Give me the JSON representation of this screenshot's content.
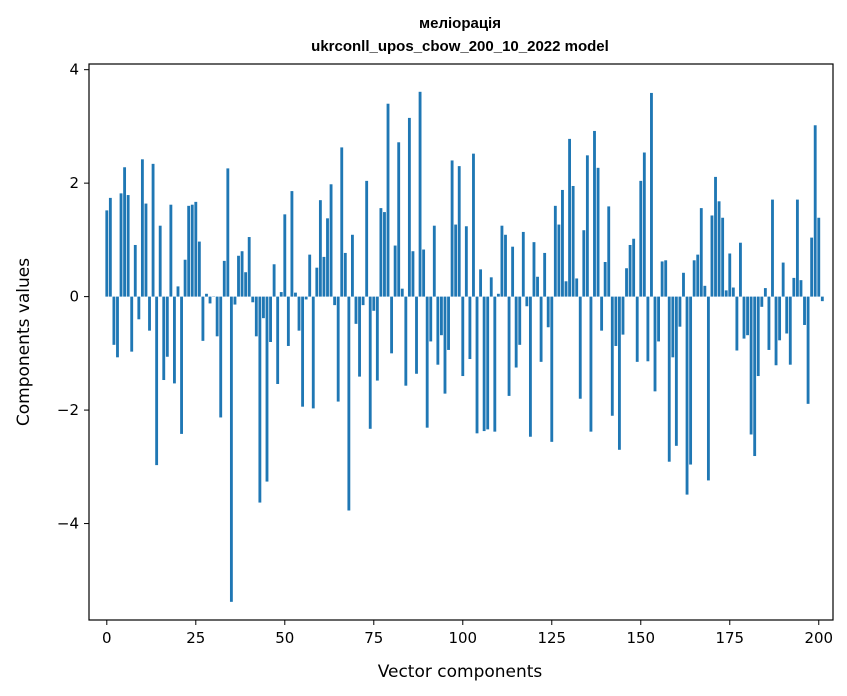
{
  "chart_data": {
    "type": "bar",
    "title": "меліорація",
    "subtitle": "ukrconll_upos_cbow_200_10_2022 model",
    "xlabel": "Vector components",
    "ylabel": "Components values",
    "xlim": [
      -5,
      204
    ],
    "ylim": [
      -5.7,
      4.1
    ],
    "xticks": [
      0,
      25,
      50,
      75,
      100,
      125,
      150,
      175,
      200
    ],
    "yticks": [
      -4,
      -2,
      0,
      2,
      4
    ],
    "ytick_labels": [
      "−4",
      "−2",
      "0",
      "2",
      "4"
    ],
    "bar_color": "#1f77b4",
    "grid": false,
    "legend": "none",
    "values": [
      1.52,
      1.74,
      -0.85,
      -1.07,
      1.82,
      2.28,
      1.79,
      -0.97,
      0.91,
      -0.4,
      2.42,
      1.64,
      -0.6,
      2.34,
      -2.97,
      1.25,
      -1.47,
      -1.06,
      1.62,
      -1.53,
      0.18,
      -2.42,
      0.65,
      1.6,
      1.62,
      1.67,
      0.97,
      -0.78,
      0.05,
      -0.12,
      0.0,
      -0.7,
      -2.13,
      0.63,
      2.26,
      -5.38,
      -0.14,
      0.72,
      0.8,
      0.43,
      1.05,
      -0.1,
      -0.7,
      -3.63,
      -0.38,
      -3.26,
      -0.8,
      0.57,
      -1.54,
      0.08,
      1.45,
      -0.87,
      1.86,
      0.07,
      -0.6,
      -1.94,
      -0.05,
      0.74,
      -1.97,
      0.51,
      1.7,
      0.7,
      1.38,
      1.98,
      -0.15,
      -1.85,
      2.63,
      0.77,
      -3.77,
      1.09,
      -0.48,
      -1.41,
      -0.15,
      2.04,
      -2.33,
      -0.25,
      -1.48,
      1.56,
      1.49,
      3.4,
      -1.0,
      0.9,
      2.72,
      0.14,
      -1.57,
      3.15,
      0.8,
      -1.36,
      3.61,
      0.83,
      -2.31,
      -0.79,
      1.25,
      -1.2,
      -0.68,
      -1.71,
      -0.94,
      2.4,
      1.27,
      2.3,
      -1.4,
      1.24,
      -1.1,
      2.52,
      -2.41,
      0.48,
      -2.37,
      -2.34,
      0.34,
      -2.38,
      0.05,
      1.25,
      1.09,
      -1.75,
      0.88,
      -1.25,
      -0.85,
      1.14,
      -0.17,
      -2.47,
      0.96,
      0.35,
      -1.15,
      0.77,
      -0.54,
      -2.56,
      1.6,
      1.27,
      1.88,
      0.27,
      2.78,
      1.95,
      0.32,
      -1.8,
      1.17,
      2.49,
      -2.38,
      2.92,
      2.27,
      -0.6,
      0.61,
      1.59,
      -2.1,
      -0.87,
      -2.7,
      -0.67,
      0.5,
      0.91,
      1.02,
      -1.15,
      2.04,
      2.54,
      -1.14,
      3.59,
      -1.67,
      -0.79,
      0.62,
      0.64,
      -2.91,
      -1.07,
      -2.63,
      -0.53,
      0.42,
      -3.49,
      -2.96,
      0.64,
      0.74,
      1.56,
      0.19,
      -3.24,
      1.43,
      2.11,
      1.68,
      1.39,
      0.11,
      0.76,
      0.16,
      -0.95,
      0.95,
      -0.74,
      -0.68,
      -2.43,
      -2.81,
      -1.4,
      -0.18,
      0.15,
      -0.94,
      1.71,
      -1.21,
      -0.77,
      0.6,
      -0.65,
      -1.2,
      0.33,
      1.71,
      0.29,
      -0.5,
      -1.89,
      1.04,
      3.02,
      1.39,
      -0.08
    ]
  }
}
